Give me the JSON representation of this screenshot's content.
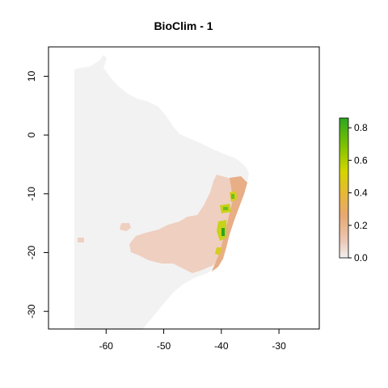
{
  "chart_data": {
    "type": "raster-map",
    "title": "BioClim -  1",
    "xlabel": "",
    "ylabel": "",
    "xlim": [
      -70,
      -23
    ],
    "ylim": [
      -33,
      15
    ],
    "x_ticks": [
      -60,
      -50,
      -40,
      -30
    ],
    "y_ticks": [
      10,
      0,
      -10,
      -20,
      -30
    ],
    "x_tick_labels": [
      "-60",
      "-50",
      "-40",
      "-30"
    ],
    "y_tick_labels": [
      "10",
      "0",
      "-10",
      "-20",
      "-30"
    ],
    "grid": false,
    "legend": {
      "placement": "right",
      "min": 0,
      "max": 0.86,
      "ticks": [
        0.0,
        0.2,
        0.4,
        0.6,
        0.8
      ],
      "tick_labels": [
        "0.0",
        "0.2",
        "0.4",
        "0.6",
        "0.8"
      ],
      "colors": [
        "#f1f1f1",
        "#ecc8b5",
        "#e8a872",
        "#e6b838",
        "#d4d500",
        "#7fc200",
        "#2ea520"
      ]
    },
    "background_color": "#f2f2f2"
  }
}
